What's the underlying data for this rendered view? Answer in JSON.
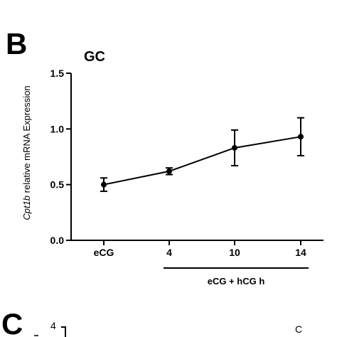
{
  "panel_b": {
    "letter": "B",
    "ylabel_italic": "Cpt1b",
    "ylabel_rest": " relative mRNA Expression"
  },
  "chart_data": {
    "type": "line",
    "title": "GC",
    "categories": [
      "eCG",
      "4",
      "10",
      "14"
    ],
    "series": [
      {
        "values": [
          0.5,
          0.62,
          0.83,
          0.93
        ],
        "errors": [
          0.06,
          0.03,
          0.16,
          0.17
        ]
      }
    ],
    "ylim": [
      0.0,
      1.5
    ],
    "yticks": [
      "0.0",
      "0.5",
      "1.0",
      "1.5"
    ],
    "xlabel": "",
    "ylabel": "Cpt1b relative mRNA Expression",
    "group_label": "eCG + hCG h",
    "grid": false,
    "color": "#000000"
  },
  "panel_c": {
    "letter": "C",
    "tick_top": "4",
    "corner_label": "C"
  }
}
